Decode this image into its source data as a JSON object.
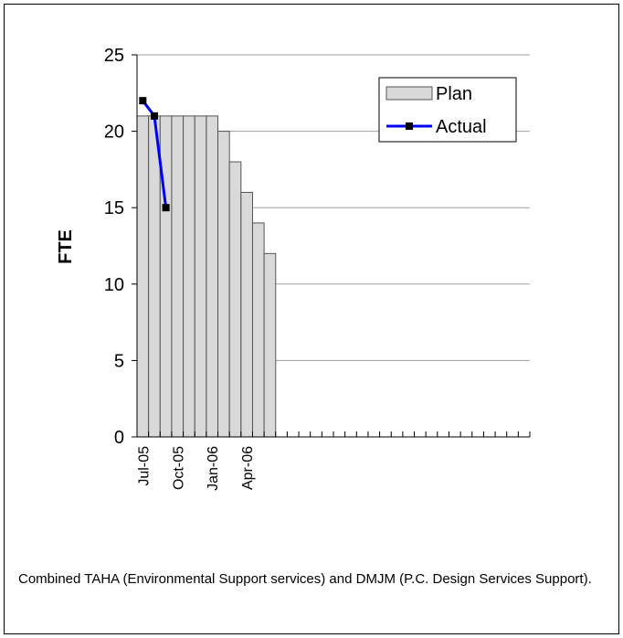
{
  "chart_data": {
    "type": "bar",
    "categories": [
      "Jul-05",
      null,
      null,
      "Oct-05",
      null,
      null,
      "Jan-06",
      null,
      null,
      "Apr-06",
      null,
      null,
      null,
      null,
      null,
      null,
      null,
      null,
      null,
      null,
      null,
      null,
      null,
      null,
      null,
      null,
      null,
      null,
      null,
      null,
      null,
      null,
      null,
      null
    ],
    "series": [
      {
        "name": "Plan",
        "color": "#d9d9d9",
        "type": "bar",
        "values": [
          21,
          21,
          21,
          21,
          21,
          21,
          21,
          20,
          18,
          16,
          14,
          12,
          null,
          null,
          null,
          null,
          null,
          null,
          null,
          null,
          null,
          null,
          null,
          null,
          null,
          null,
          null,
          null,
          null,
          null,
          null,
          null,
          null,
          null
        ]
      },
      {
        "name": "Actual",
        "color": "#0000ff",
        "type": "line",
        "values": [
          22,
          21,
          15,
          null,
          null,
          null,
          null,
          null,
          null,
          null,
          null,
          null,
          null,
          null,
          null,
          null,
          null,
          null,
          null,
          null,
          null,
          null,
          null,
          null,
          null,
          null,
          null,
          null,
          null,
          null,
          null,
          null,
          null,
          null
        ]
      }
    ],
    "y_label": "FTE",
    "ylim": [
      0,
      25
    ],
    "yticks": [
      0,
      5,
      10,
      15,
      20,
      25
    ],
    "grid": true,
    "legend": "top-right",
    "caption": "Combined TAHA (Environmental Support services) and DMJM (P.C. Design Services Support)."
  }
}
